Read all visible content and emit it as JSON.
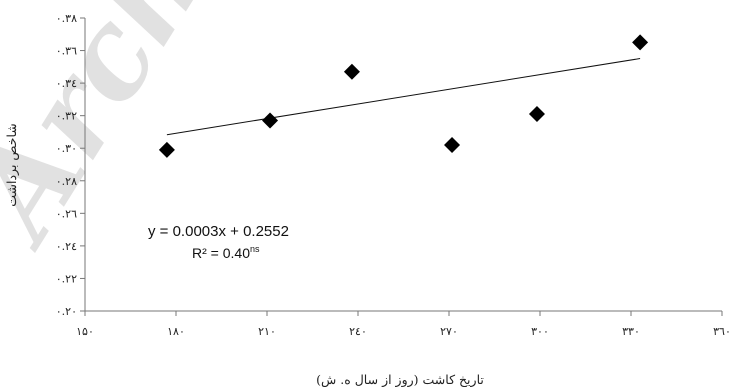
{
  "chart_data": {
    "type": "scatter",
    "xlabel": "تاریخ کاشت (روز از سال ه. ش)",
    "ylabel": "شاخص برداشت",
    "xlim": [
      150,
      360
    ],
    "ylim": [
      0.2,
      0.38
    ],
    "x_ticks": [
      "۱۵۰",
      "۱۸۰",
      "۲۱۰",
      "۲٤۰",
      "۲۷۰",
      "۳۰۰",
      "۳۳۰",
      "۳٦۰"
    ],
    "y_ticks": [
      "۰.۲۰",
      "۰.۲۲",
      "۰.۲٤",
      "۰.۲٦",
      "۰.۲۸",
      "۰.۳۰",
      "۰.۳۲",
      "۰.۳٤",
      "۰.۳٦",
      "۰.۳۸"
    ],
    "x_tick_values": [
      150,
      180,
      210,
      240,
      270,
      300,
      330,
      360
    ],
    "y_tick_values": [
      0.2,
      0.22,
      0.24,
      0.26,
      0.28,
      0.3,
      0.32,
      0.34,
      0.36,
      0.38
    ],
    "points": [
      {
        "x": 177,
        "y": 0.299
      },
      {
        "x": 211,
        "y": 0.317
      },
      {
        "x": 238,
        "y": 0.347
      },
      {
        "x": 271,
        "y": 0.302
      },
      {
        "x": 299,
        "y": 0.321
      },
      {
        "x": 333,
        "y": 0.365
      }
    ],
    "trendline": {
      "slope": 0.0003,
      "intercept": 0.2552,
      "x_range": [
        177,
        333
      ],
      "equation": "y = 0.0003x + 0.2552",
      "r2_label": "R² = 0.40",
      "r2_superscript": "ns"
    },
    "marker": "diamond",
    "marker_color": "#000000",
    "grid": false,
    "legend": "none",
    "watermark": "Archive"
  }
}
